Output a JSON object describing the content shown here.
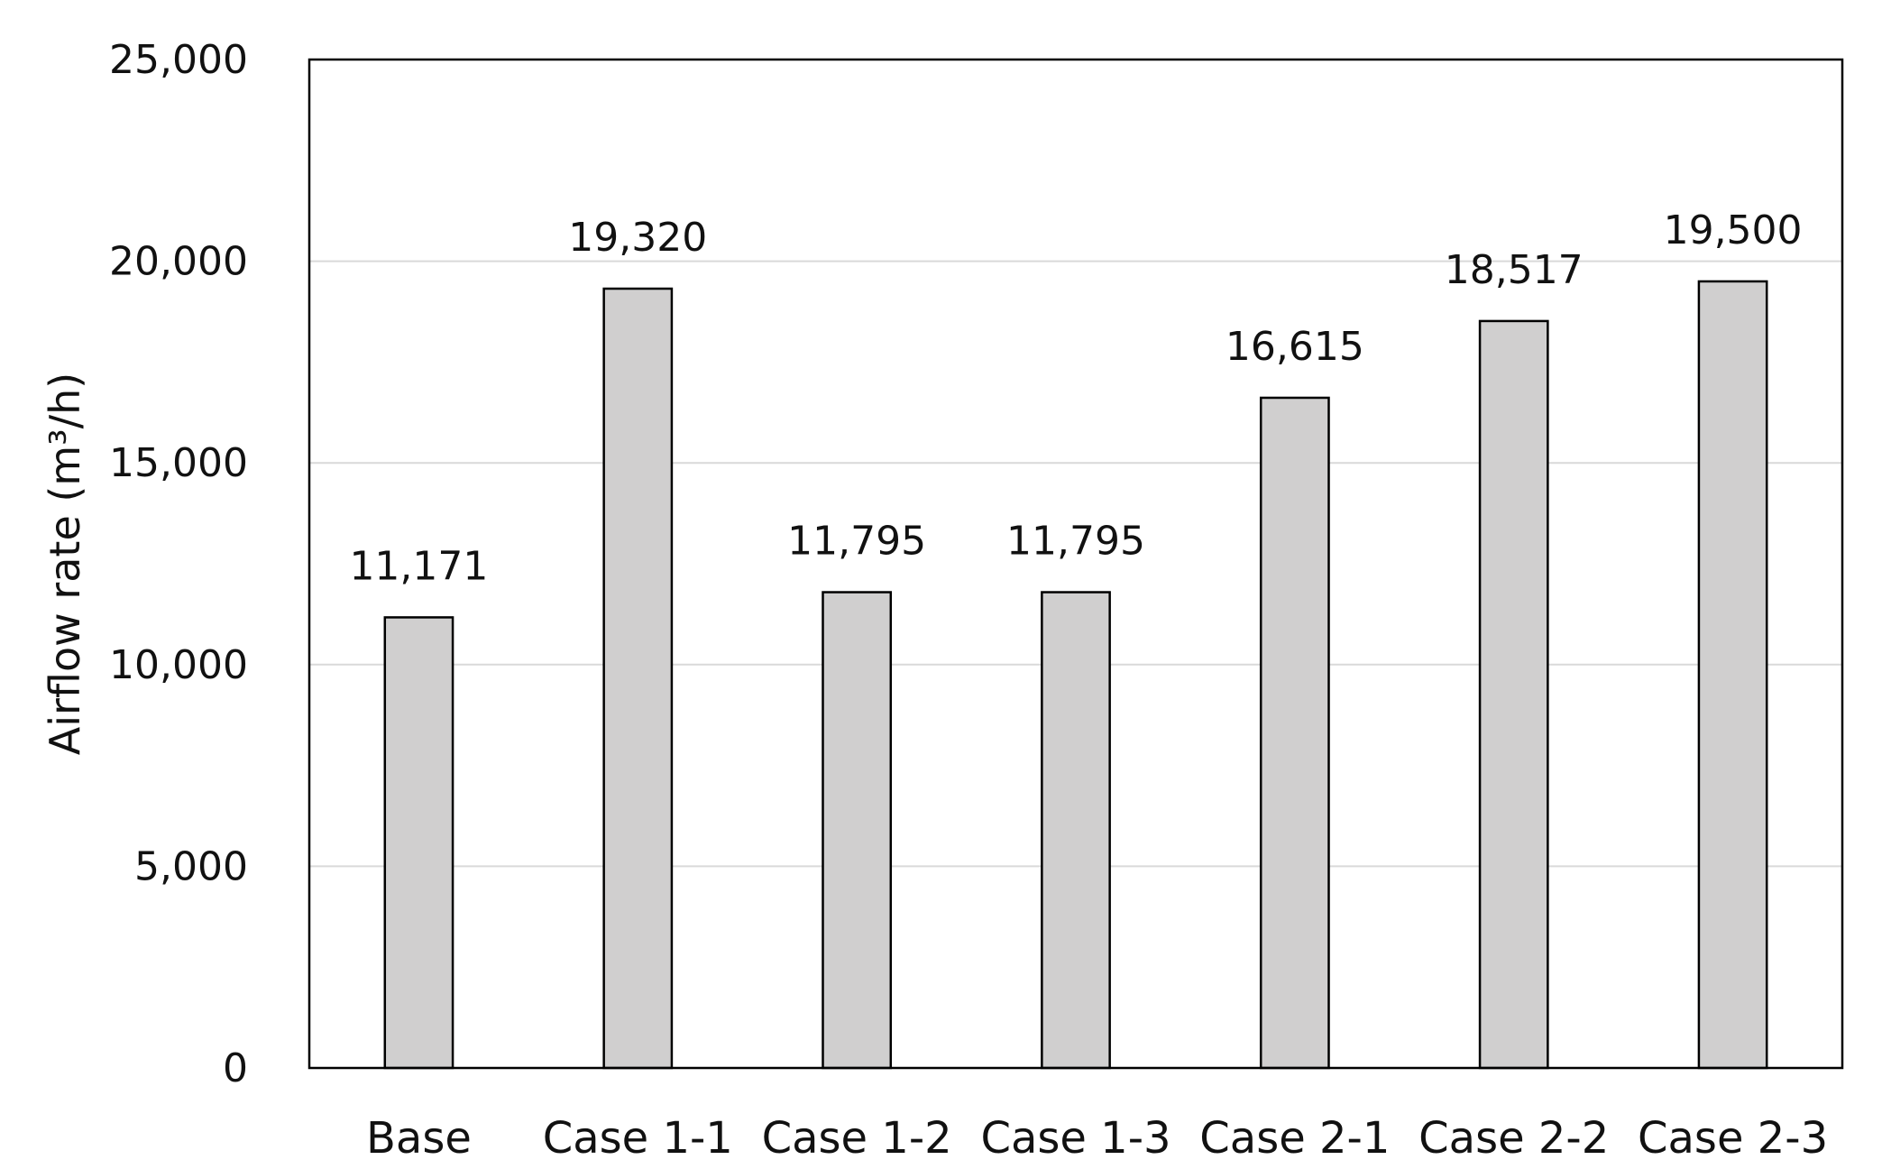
{
  "chart_data": {
    "type": "bar",
    "categories": [
      "Base",
      "Case 1-1",
      "Case 1-2",
      "Case 1-3",
      "Case 2-1",
      "Case 2-2",
      "Case 2-3"
    ],
    "values": [
      11171,
      19320,
      11795,
      11795,
      16615,
      18517,
      19500
    ],
    "data_labels": [
      "11,171",
      "19,320",
      "11,795",
      "11,795",
      "16,615",
      "18,517",
      "19,500"
    ],
    "title": "",
    "xlabel": "",
    "ylabel": "Airflow rate (m³/h)",
    "ylim": [
      0,
      25000
    ],
    "yticks": [
      0,
      5000,
      10000,
      15000,
      20000,
      25000
    ],
    "ytick_labels": [
      "0",
      "5,000",
      "10,000",
      "15,000",
      "20,000",
      "25,000"
    ],
    "grid": "horizontal",
    "legend": "none",
    "bar_color": "#d0cfcf",
    "edge_color": "#000000"
  }
}
